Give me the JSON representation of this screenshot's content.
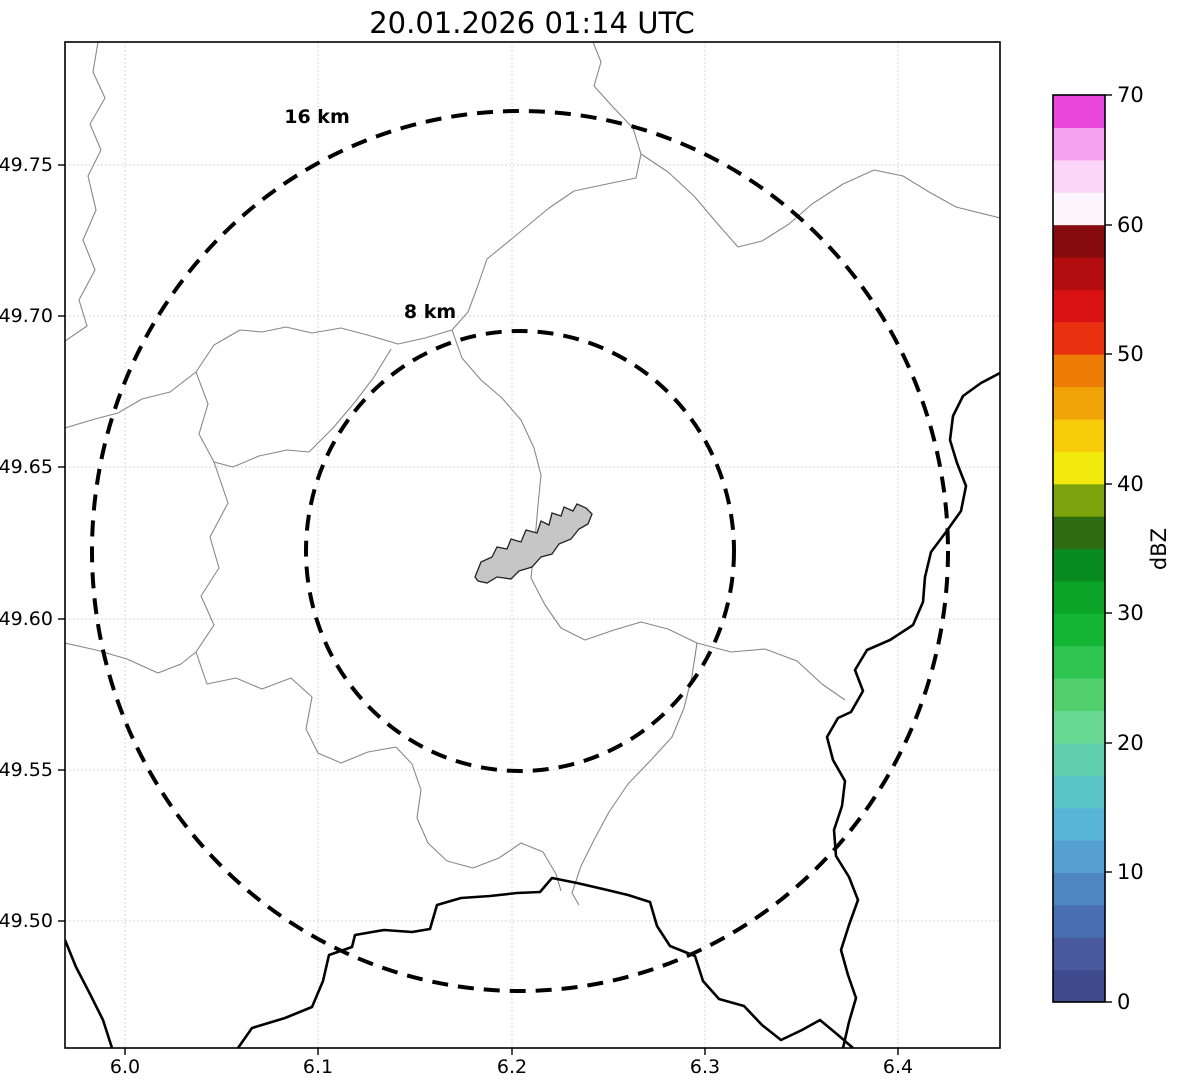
{
  "title": "20.01.2026 01:14 UTC",
  "axes": {
    "x_tick_labels": [
      "6.0",
      "6.1",
      "6.2",
      "6.3",
      "6.4"
    ],
    "y_tick_labels": [
      "49.75",
      "49.70",
      "49.65",
      "49.60",
      "49.55",
      "49.50"
    ]
  },
  "rings": {
    "outer_label": "16 km",
    "inner_label": "8 km"
  },
  "map_features": {
    "city_area_color": "#c6c6c6",
    "admin_line_color": "#888888",
    "border_line_color": "#000000",
    "ring_color": "#000000"
  },
  "colorbar": {
    "label": "dBZ",
    "tick_labels": [
      "0",
      "10",
      "20",
      "30",
      "40",
      "50",
      "60",
      "70"
    ],
    "colors_bottom_to_top": [
      "#3e4a8c",
      "#4a5a9e",
      "#4a6eb2",
      "#4e86c2",
      "#55a0d0",
      "#5ab6d8",
      "#5bc6c8",
      "#61d0ae",
      "#69d892",
      "#52d06e",
      "#30c550",
      "#14b434",
      "#0ba428",
      "#088c20",
      "#2f6b10",
      "#7da30c",
      "#f2ea0e",
      "#f6cc0a",
      "#f1a409",
      "#ee7d07",
      "#e93110",
      "#d81213",
      "#b30d10",
      "#870b0d",
      "#fdf7fd",
      "#fbd6f8",
      "#f6a4ef",
      "#ea46dd"
    ]
  }
}
